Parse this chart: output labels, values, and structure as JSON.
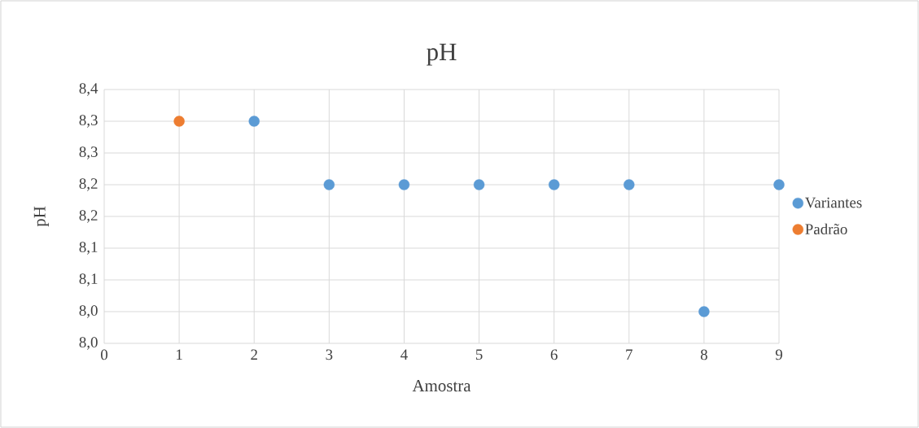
{
  "chart_data": {
    "type": "scatter",
    "title": "pH",
    "xlabel": "Amostra",
    "ylabel": "pH",
    "series": [
      {
        "name": "Variantes",
        "color": "#5b9bd5",
        "x": [
          2,
          3,
          4,
          5,
          6,
          7,
          8,
          9
        ],
        "values": [
          8.3,
          8.2,
          8.2,
          8.2,
          8.2,
          8.2,
          8.0,
          8.2
        ]
      },
      {
        "name": "Padrão",
        "color": "#ed7d31",
        "x": [
          1
        ],
        "values": [
          8.3
        ]
      }
    ],
    "xlim": [
      0,
      9
    ],
    "xticks": [
      0,
      1,
      2,
      3,
      4,
      5,
      6,
      7,
      8,
      9
    ],
    "ylim": [
      7.95,
      8.35
    ],
    "yticks": [
      {
        "value": 7.95,
        "label": "8,0"
      },
      {
        "value": 8.0,
        "label": "8,0"
      },
      {
        "value": 8.05,
        "label": "8,1"
      },
      {
        "value": 8.1,
        "label": "8,1"
      },
      {
        "value": 8.15,
        "label": "8,2"
      },
      {
        "value": 8.2,
        "label": "8,2"
      },
      {
        "value": 8.25,
        "label": "8,3"
      },
      {
        "value": 8.3,
        "label": "8,3"
      },
      {
        "value": 8.35,
        "label": "8,4"
      }
    ],
    "grid": true,
    "legend": "right",
    "marker": "circle"
  }
}
